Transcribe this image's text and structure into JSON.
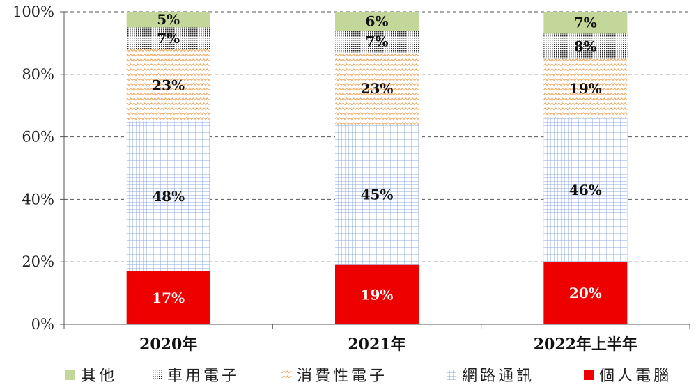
{
  "chart_data": {
    "type": "bar",
    "stacked": true,
    "normalized": true,
    "categories": [
      "2020年",
      "2021年",
      "2022年上半年"
    ],
    "series": [
      {
        "name": "個人電腦",
        "values": [
          17,
          19,
          20
        ],
        "labels": [
          "17%",
          "19%",
          "20%"
        ],
        "color": "#ee0000",
        "pattern": "solid"
      },
      {
        "name": "網路通訊",
        "values": [
          48,
          45,
          46
        ],
        "labels": [
          "48%",
          "45%",
          "46%"
        ],
        "color": "#8eaadb",
        "pattern": "grid"
      },
      {
        "name": "消費性電子",
        "values": [
          23,
          23,
          19
        ],
        "labels": [
          "23%",
          "23%",
          "19%"
        ],
        "color": "#f4a460",
        "pattern": "wave"
      },
      {
        "name": "車用電子",
        "values": [
          7,
          7,
          8
        ],
        "labels": [
          "7%",
          "7%",
          "8%"
        ],
        "color": "#333333",
        "pattern": "dots"
      },
      {
        "name": "其他",
        "values": [
          5,
          6,
          7
        ],
        "labels": [
          "5%",
          "6%",
          "7%"
        ],
        "color": "#c4d79b",
        "pattern": "solid"
      }
    ],
    "ylim": [
      0,
      100
    ],
    "yticks": [
      "0%",
      "20%",
      "40%",
      "60%",
      "80%",
      "100%"
    ],
    "ytick_values": [
      0,
      20,
      40,
      60,
      80,
      100
    ],
    "grid": true,
    "legend": {
      "position": "bottom",
      "order": [
        "其他",
        "車用電子",
        "消費性電子",
        "網路通訊",
        "個人電腦"
      ]
    }
  }
}
